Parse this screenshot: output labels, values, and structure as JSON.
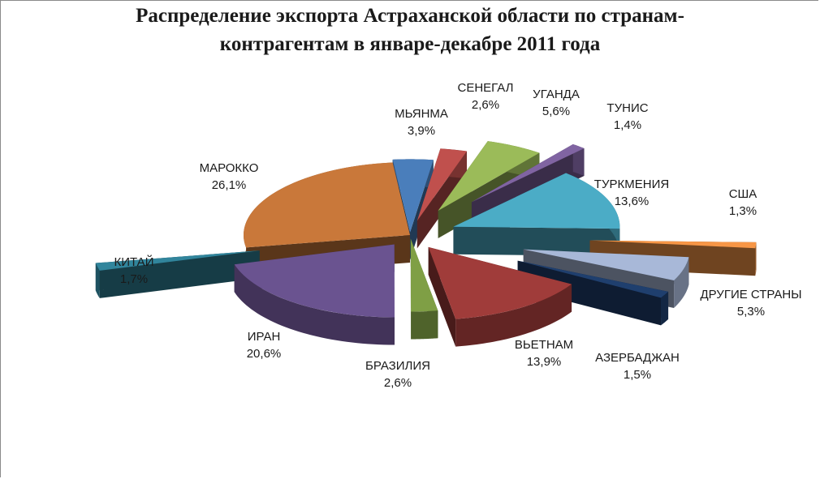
{
  "chart_data": {
    "type": "pie",
    "style": "3d-exploded",
    "title_lines": [
      "Распределение экспорта Астраханской области по странам-",
      "контрагентам в январе-декабре 2011 года"
    ],
    "slices": [
      {
        "name": "МЬЯНМА",
        "value_label": "3,9%",
        "value": 3.9,
        "color": "#4a7ebb"
      },
      {
        "name": "СЕНЕГАЛ",
        "value_label": "2,6%",
        "value": 2.6,
        "color": "#c0504d"
      },
      {
        "name": "УГАНДА",
        "value_label": "5,6%",
        "value": 5.6,
        "color": "#9bbb59"
      },
      {
        "name": "ТУНИС",
        "value_label": "1,4%",
        "value": 1.4,
        "color": "#8064a2"
      },
      {
        "name": "ТУРКМЕНИЯ",
        "value_label": "13,6%",
        "value": 13.6,
        "color": "#4bacc6"
      },
      {
        "name": "США",
        "value_label": "1,3%",
        "value": 1.3,
        "color": "#f79646"
      },
      {
        "name": "ДРУГИЕ СТРАНЫ",
        "value_label": "5,3%",
        "value": 5.3,
        "color": "#a8b8d8"
      },
      {
        "name": "АЗЕРБАДЖАН",
        "value_label": "1,5%",
        "value": 1.5,
        "color": "#1f3f6e"
      },
      {
        "name": "ВЬЕТНАМ",
        "value_label": "13,9%",
        "value": 13.9,
        "color": "#a03c3a"
      },
      {
        "name": "БРАЗИЛИЯ",
        "value_label": "2,6%",
        "value": 2.6,
        "color": "#7f9f45"
      },
      {
        "name": "ИРАН",
        "value_label": "20,6%",
        "value": 20.6,
        "color": "#6a5390"
      },
      {
        "name": "КИТАЙ",
        "value_label": "1,7%",
        "value": 1.7,
        "color": "#31859c"
      },
      {
        "name": "МАРОККО",
        "value_label": "26,1%",
        "value": 26.1,
        "color": "#c9783a"
      }
    ]
  }
}
